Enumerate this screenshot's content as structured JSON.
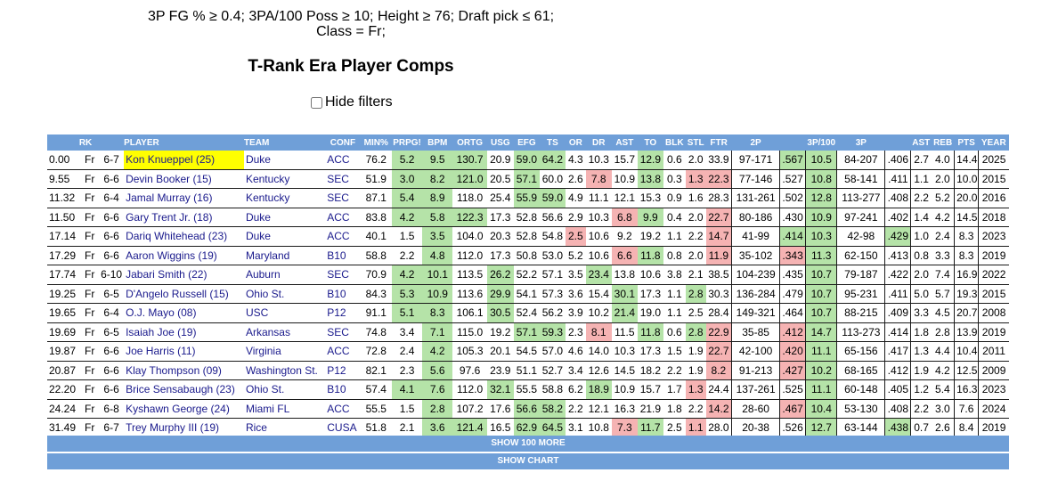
{
  "filters": {
    "line1": "3P FG % ≥ 0.4; 3PA/100 Poss ≥ 10; Height ≥ 76; Draft pick ≤ 61;",
    "line2": "Class = Fr;"
  },
  "title": "T-Rank Era Player Comps",
  "hide_filters_label": "Hide filters",
  "columns": [
    "RK",
    "PLAYER",
    "TEAM",
    "CONF",
    "MIN%",
    "PRPG!",
    "BPM",
    "ORTG",
    "USG",
    "EFG",
    "TS",
    "OR",
    "DR",
    "AST",
    "TO",
    "BLK",
    "STL",
    "FTR",
    "2P",
    "",
    "3P/100",
    "3P",
    "",
    "AST",
    "REB",
    "PTS",
    "YEAR"
  ],
  "rows": [
    {
      "rk": "0.00",
      "cls": "Fr",
      "ht": "6-7",
      "player": "Kon Knueppel (25)",
      "team": "Duke",
      "conf": "ACC",
      "min": "76.2",
      "prpg": "5.2",
      "bpm": "9.5",
      "ortg": "130.7",
      "usg": "20.9",
      "efg": "59.0",
      "ts": "64.2",
      "or": "4.3",
      "dr": "10.3",
      "ast": "15.7",
      "to": "12.9",
      "blk": "0.6",
      "stl": "2.0",
      "ftr": "33.9",
      "twop": "97-171",
      "twopct": ".567",
      "threep100": "10.5",
      "threep": "84-207",
      "threepct": ".406",
      "apg": "2.7",
      "rpg": "4.0",
      "ppg": "14.4",
      "year": "2025"
    },
    {
      "rk": "9.55",
      "cls": "Fr",
      "ht": "6-6",
      "player": "Devin Booker (15)",
      "team": "Kentucky",
      "conf": "SEC",
      "min": "51.9",
      "prpg": "3.0",
      "bpm": "8.2",
      "ortg": "121.0",
      "usg": "20.5",
      "efg": "57.1",
      "ts": "60.0",
      "or": "2.6",
      "dr": "7.8",
      "ast": "10.9",
      "to": "13.8",
      "blk": "0.3",
      "stl": "1.3",
      "ftr": "22.3",
      "twop": "77-146",
      "twopct": ".527",
      "threep100": "10.8",
      "threep": "58-141",
      "threepct": ".411",
      "apg": "1.1",
      "rpg": "2.0",
      "ppg": "10.0",
      "year": "2015"
    },
    {
      "rk": "11.32",
      "cls": "Fr",
      "ht": "6-4",
      "player": "Jamal Murray (16)",
      "team": "Kentucky",
      "conf": "SEC",
      "min": "87.1",
      "prpg": "5.4",
      "bpm": "8.9",
      "ortg": "118.0",
      "usg": "25.4",
      "efg": "55.9",
      "ts": "59.0",
      "or": "4.9",
      "dr": "11.1",
      "ast": "12.1",
      "to": "15.3",
      "blk": "0.9",
      "stl": "1.6",
      "ftr": "28.3",
      "twop": "131-261",
      "twopct": ".502",
      "threep100": "12.8",
      "threep": "113-277",
      "threepct": ".408",
      "apg": "2.2",
      "rpg": "5.2",
      "ppg": "20.0",
      "year": "2016"
    },
    {
      "rk": "11.50",
      "cls": "Fr",
      "ht": "6-6",
      "player": "Gary Trent Jr. (18)",
      "team": "Duke",
      "conf": "ACC",
      "min": "83.8",
      "prpg": "4.2",
      "bpm": "5.8",
      "ortg": "122.3",
      "usg": "17.3",
      "efg": "52.8",
      "ts": "56.6",
      "or": "2.9",
      "dr": "10.3",
      "ast": "6.8",
      "to": "9.9",
      "blk": "0.4",
      "stl": "2.0",
      "ftr": "22.7",
      "twop": "80-186",
      "twopct": ".430",
      "threep100": "10.9",
      "threep": "97-241",
      "threepct": ".402",
      "apg": "1.4",
      "rpg": "4.2",
      "ppg": "14.5",
      "year": "2018"
    },
    {
      "rk": "17.14",
      "cls": "Fr",
      "ht": "6-6",
      "player": "Dariq Whitehead (23)",
      "team": "Duke",
      "conf": "ACC",
      "min": "40.1",
      "prpg": "1.5",
      "bpm": "3.5",
      "ortg": "104.0",
      "usg": "20.3",
      "efg": "52.8",
      "ts": "54.8",
      "or": "2.5",
      "dr": "10.6",
      "ast": "9.2",
      "to": "19.2",
      "blk": "1.1",
      "stl": "2.2",
      "ftr": "14.7",
      "twop": "41-99",
      "twopct": ".414",
      "threep100": "10.3",
      "threep": "42-98",
      "threepct": ".429",
      "apg": "1.0",
      "rpg": "2.4",
      "ppg": "8.3",
      "year": "2023"
    },
    {
      "rk": "17.29",
      "cls": "Fr",
      "ht": "6-6",
      "player": "Aaron Wiggins (19)",
      "team": "Maryland",
      "conf": "B10",
      "min": "58.8",
      "prpg": "2.2",
      "bpm": "4.8",
      "ortg": "112.0",
      "usg": "17.3",
      "efg": "50.8",
      "ts": "53.0",
      "or": "5.2",
      "dr": "10.6",
      "ast": "6.6",
      "to": "11.8",
      "blk": "0.8",
      "stl": "2.0",
      "ftr": "11.9",
      "twop": "35-102",
      "twopct": ".343",
      "threep100": "11.3",
      "threep": "62-150",
      "threepct": ".413",
      "apg": "0.8",
      "rpg": "3.3",
      "ppg": "8.3",
      "year": "2019"
    },
    {
      "rk": "17.74",
      "cls": "Fr",
      "ht": "6-10",
      "player": "Jabari Smith (22)",
      "team": "Auburn",
      "conf": "SEC",
      "min": "70.9",
      "prpg": "4.2",
      "bpm": "10.1",
      "ortg": "113.5",
      "usg": "26.2",
      "efg": "52.2",
      "ts": "57.1",
      "or": "3.5",
      "dr": "23.4",
      "ast": "13.8",
      "to": "10.6",
      "blk": "3.8",
      "stl": "2.1",
      "ftr": "38.5",
      "twop": "104-239",
      "twopct": ".435",
      "threep100": "10.7",
      "threep": "79-187",
      "threepct": ".422",
      "apg": "2.0",
      "rpg": "7.4",
      "ppg": "16.9",
      "year": "2022"
    },
    {
      "rk": "19.25",
      "cls": "Fr",
      "ht": "6-5",
      "player": "D'Angelo Russell (15)",
      "team": "Ohio St.",
      "conf": "B10",
      "min": "84.3",
      "prpg": "5.3",
      "bpm": "10.9",
      "ortg": "113.6",
      "usg": "29.9",
      "efg": "54.1",
      "ts": "57.3",
      "or": "3.6",
      "dr": "15.4",
      "ast": "30.1",
      "to": "17.3",
      "blk": "1.1",
      "stl": "2.8",
      "ftr": "30.3",
      "twop": "136-284",
      "twopct": ".479",
      "threep100": "10.7",
      "threep": "95-231",
      "threepct": ".411",
      "apg": "5.0",
      "rpg": "5.7",
      "ppg": "19.3",
      "year": "2015"
    },
    {
      "rk": "19.65",
      "cls": "Fr",
      "ht": "6-4",
      "player": "O.J. Mayo (08)",
      "team": "USC",
      "conf": "P12",
      "min": "91.1",
      "prpg": "5.1",
      "bpm": "8.3",
      "ortg": "106.1",
      "usg": "30.5",
      "efg": "52.4",
      "ts": "56.2",
      "or": "3.9",
      "dr": "10.2",
      "ast": "21.4",
      "to": "19.0",
      "blk": "1.1",
      "stl": "2.5",
      "ftr": "28.4",
      "twop": "149-321",
      "twopct": ".464",
      "threep100": "10.7",
      "threep": "88-215",
      "threepct": ".409",
      "apg": "3.3",
      "rpg": "4.5",
      "ppg": "20.7",
      "year": "2008"
    },
    {
      "rk": "19.69",
      "cls": "Fr",
      "ht": "6-5",
      "player": "Isaiah Joe (19)",
      "team": "Arkansas",
      "conf": "SEC",
      "min": "74.8",
      "prpg": "3.4",
      "bpm": "7.1",
      "ortg": "115.0",
      "usg": "19.2",
      "efg": "57.1",
      "ts": "59.3",
      "or": "2.3",
      "dr": "8.1",
      "ast": "11.5",
      "to": "11.8",
      "blk": "0.6",
      "stl": "2.8",
      "ftr": "22.9",
      "twop": "35-85",
      "twopct": ".412",
      "threep100": "14.7",
      "threep": "113-273",
      "threepct": ".414",
      "apg": "1.8",
      "rpg": "2.8",
      "ppg": "13.9",
      "year": "2019"
    },
    {
      "rk": "19.87",
      "cls": "Fr",
      "ht": "6-6",
      "player": "Joe Harris (11)",
      "team": "Virginia",
      "conf": "ACC",
      "min": "72.8",
      "prpg": "2.4",
      "bpm": "4.2",
      "ortg": "105.3",
      "usg": "20.1",
      "efg": "54.5",
      "ts": "57.0",
      "or": "4.6",
      "dr": "14.0",
      "ast": "10.3",
      "to": "17.3",
      "blk": "1.5",
      "stl": "1.9",
      "ftr": "22.7",
      "twop": "42-100",
      "twopct": ".420",
      "threep100": "11.1",
      "threep": "65-156",
      "threepct": ".417",
      "apg": "1.3",
      "rpg": "4.4",
      "ppg": "10.4",
      "year": "2011"
    },
    {
      "rk": "20.87",
      "cls": "Fr",
      "ht": "6-6",
      "player": "Klay Thompson (09)",
      "team": "Washington St.",
      "conf": "P12",
      "min": "82.1",
      "prpg": "2.3",
      "bpm": "5.6",
      "ortg": "97.6",
      "usg": "23.9",
      "efg": "51.1",
      "ts": "52.7",
      "or": "3.4",
      "dr": "12.6",
      "ast": "14.5",
      "to": "18.2",
      "blk": "2.2",
      "stl": "1.9",
      "ftr": "8.2",
      "twop": "91-213",
      "twopct": ".427",
      "threep100": "10.2",
      "threep": "68-165",
      "threepct": ".412",
      "apg": "1.9",
      "rpg": "4.2",
      "ppg": "12.5",
      "year": "2009"
    },
    {
      "rk": "22.20",
      "cls": "Fr",
      "ht": "6-6",
      "player": "Brice Sensabaugh (23)",
      "team": "Ohio St.",
      "conf": "B10",
      "min": "57.4",
      "prpg": "4.1",
      "bpm": "7.6",
      "ortg": "112.0",
      "usg": "32.1",
      "efg": "55.5",
      "ts": "58.8",
      "or": "6.2",
      "dr": "18.9",
      "ast": "10.9",
      "to": "15.7",
      "blk": "1.7",
      "stl": "1.3",
      "ftr": "24.4",
      "twop": "137-261",
      "twopct": ".525",
      "threep100": "11.1",
      "threep": "60-148",
      "threepct": ".405",
      "apg": "1.2",
      "rpg": "5.4",
      "ppg": "16.3",
      "year": "2023"
    },
    {
      "rk": "24.24",
      "cls": "Fr",
      "ht": "6-8",
      "player": "Kyshawn George (24)",
      "team": "Miami FL",
      "conf": "ACC",
      "min": "55.5",
      "prpg": "1.5",
      "bpm": "2.8",
      "ortg": "107.2",
      "usg": "17.6",
      "efg": "56.6",
      "ts": "58.2",
      "or": "2.2",
      "dr": "12.1",
      "ast": "16.3",
      "to": "21.9",
      "blk": "1.8",
      "stl": "2.2",
      "ftr": "14.2",
      "twop": "28-60",
      "twopct": ".467",
      "threep100": "10.4",
      "threep": "53-130",
      "threepct": ".408",
      "apg": "2.2",
      "rpg": "3.0",
      "ppg": "7.6",
      "year": "2024"
    },
    {
      "rk": "31.49",
      "cls": "Fr",
      "ht": "6-7",
      "player": "Trey Murphy III (19)",
      "team": "Rice",
      "conf": "CUSA",
      "min": "51.8",
      "prpg": "2.1",
      "bpm": "3.6",
      "ortg": "121.4",
      "usg": "16.5",
      "efg": "62.9",
      "ts": "64.5",
      "or": "3.1",
      "dr": "10.8",
      "ast": "7.3",
      "to": "11.7",
      "blk": "2.5",
      "stl": "1.1",
      "ftr": "28.0",
      "twop": "20-38",
      "twopct": ".526",
      "threep100": "12.7",
      "threep": "63-144",
      "threepct": ".438",
      "apg": "0.7",
      "rpg": "2.6",
      "ppg": "8.4",
      "year": "2019"
    }
  ],
  "show_more_label": "SHOW 100 MORE",
  "show_chart_label": "SHOW CHART",
  "colors": {
    "header_bg": "#6f9fd8",
    "good": "#b5e3a8",
    "bad": "#f5b3b3",
    "highlight": "#ffff00",
    "link": "#1a1a8c"
  }
}
